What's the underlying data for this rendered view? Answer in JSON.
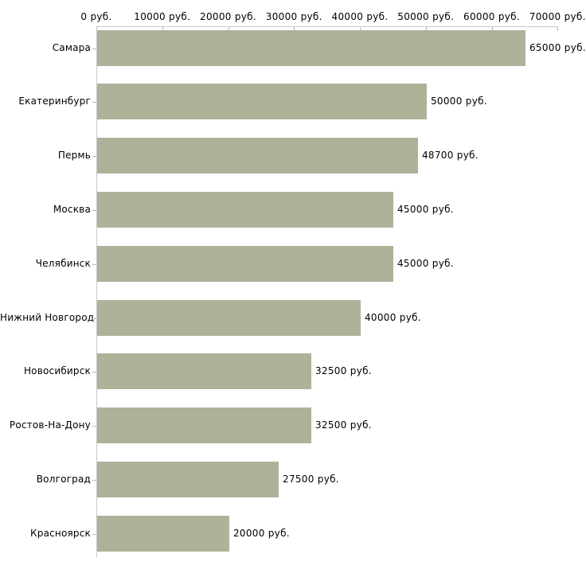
{
  "colors": {
    "background": "#ffffff",
    "bar": "#adb299",
    "axis": "#c8c8c8",
    "tick": "#b8bd9c",
    "text": "#000000"
  },
  "chart_data": {
    "type": "bar",
    "orientation": "horizontal",
    "title": "",
    "xlabel": "",
    "ylabel": "",
    "unit": "руб.",
    "grid": false,
    "legend": null,
    "xlim": [
      0,
      70000
    ],
    "x_tick_values": [
      0,
      10000,
      20000,
      30000,
      40000,
      50000,
      60000,
      70000
    ],
    "x_tick_labels": [
      "0 руб.",
      "10000 руб.",
      "20000 руб.",
      "30000 руб.",
      "40000 руб.",
      "50000 руб.",
      "60000 руб.",
      "70000 руб."
    ],
    "categories": [
      "Самара",
      "Екатеринбург",
      "Пермь",
      "Москва",
      "Челябинск",
      "Нижний Новгород",
      "Новосибирск",
      "Ростов-На-Дону",
      "Волгоград",
      "Красноярск"
    ],
    "values": [
      65000,
      50000,
      48700,
      45000,
      45000,
      40000,
      32500,
      32500,
      27500,
      20000
    ],
    "value_labels": [
      "65000 руб.",
      "50000 руб.",
      "48700 руб.",
      "45000 руб.",
      "45000 руб.",
      "40000 руб.",
      "32500 руб.",
      "32500 руб.",
      "27500 руб.",
      "20000 руб."
    ]
  }
}
